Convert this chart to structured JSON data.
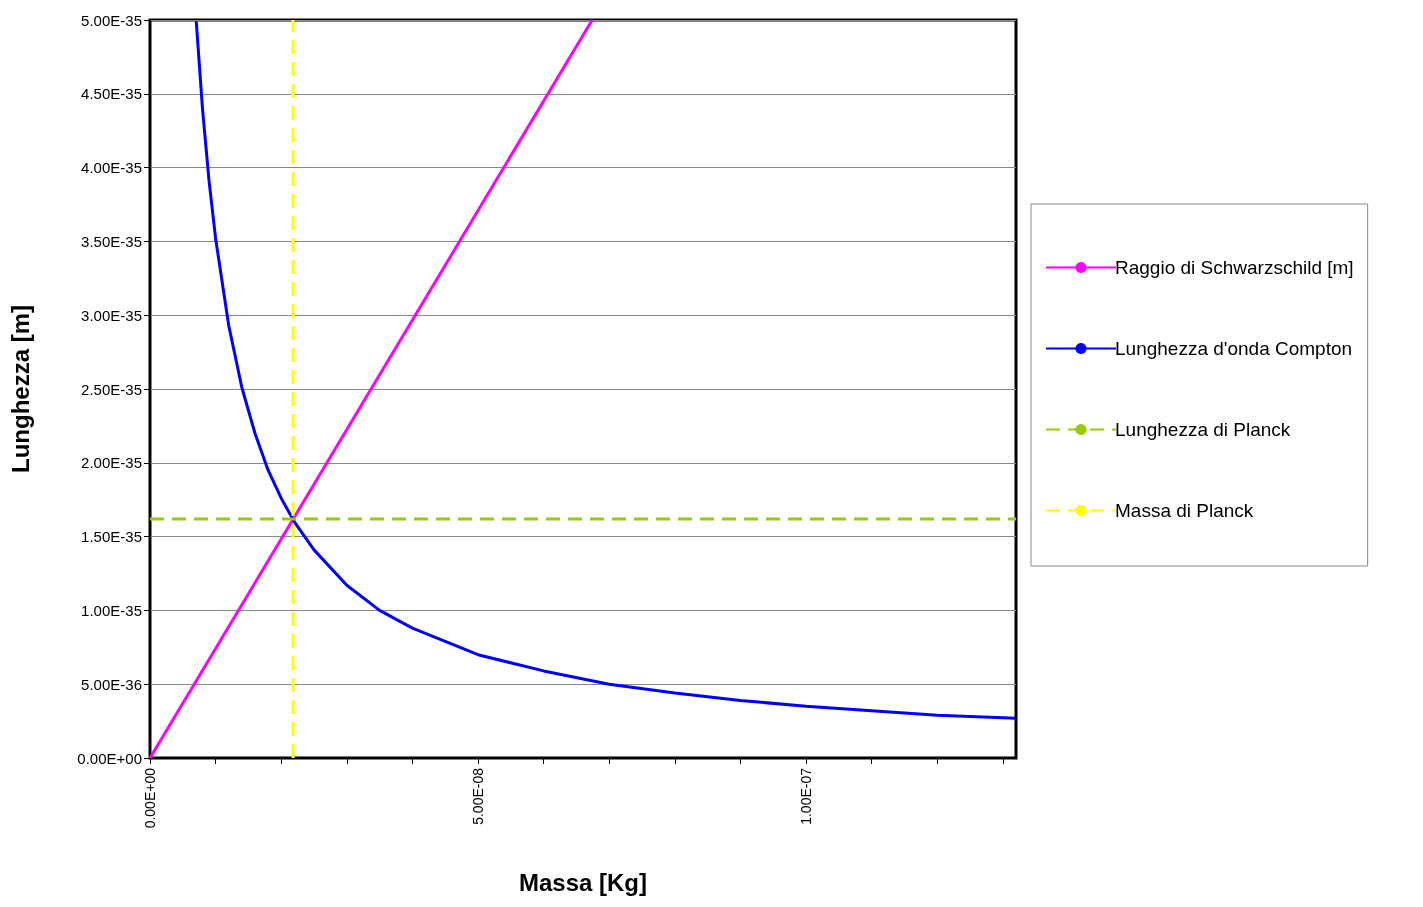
{
  "chart_data": {
    "type": "line",
    "xlabel": "Massa [Kg]",
    "ylabel": "Lunghezza [m]",
    "xlim": [
      0,
      1.32e-07
    ],
    "xticks": [
      {
        "value": 0,
        "label": "0.00E+00"
      },
      {
        "value": 1e-08,
        "label": null
      },
      {
        "value": 2e-08,
        "label": null
      },
      {
        "value": 3e-08,
        "label": null
      },
      {
        "value": 4e-08,
        "label": null
      },
      {
        "value": 5e-08,
        "label": "5.00E-08"
      },
      {
        "value": 6e-08,
        "label": null
      },
      {
        "value": 7e-08,
        "label": null
      },
      {
        "value": 8e-08,
        "label": null
      },
      {
        "value": 9e-08,
        "label": null
      },
      {
        "value": 1e-07,
        "label": "1.00E-07"
      },
      {
        "value": 1.1e-07,
        "label": null
      },
      {
        "value": 1.2e-07,
        "label": null
      },
      {
        "value": 1.3e-07,
        "label": null
      }
    ],
    "ylim": [
      0,
      5e-35
    ],
    "yticks": [
      {
        "value": 0,
        "label": "0.00E+00"
      },
      {
        "value": 5e-36,
        "label": "5.00E-36"
      },
      {
        "value": 1e-35,
        "label": "1.00E-35"
      },
      {
        "value": 1.5e-35,
        "label": "1.50E-35"
      },
      {
        "value": 2e-35,
        "label": "2.00E-35"
      },
      {
        "value": 2.5e-35,
        "label": "2.50E-35"
      },
      {
        "value": 3e-35,
        "label": "3.00E-35"
      },
      {
        "value": 3.5e-35,
        "label": "3.50E-35"
      },
      {
        "value": 4e-35,
        "label": "4.00E-35"
      },
      {
        "value": 4.5e-35,
        "label": "4.50E-35"
      },
      {
        "value": 5e-35,
        "label": "5.00E-35"
      }
    ],
    "grid": "y",
    "legend": "right",
    "marker": "none",
    "series": [
      {
        "name": "Raggio di Schwarzschild [m]",
        "color": "#ff00ff",
        "line_style": "solid",
        "x": [
          0,
          6.74e-08
        ],
        "values": [
          0,
          5e-35
        ]
      },
      {
        "name": "Lunghezza d'onda Compton",
        "color": "#0000ff",
        "line_style": "solid",
        "x": [
          7.05e-09,
          8e-09,
          9e-09,
          1e-08,
          1.2e-08,
          1.4e-08,
          1.6e-08,
          1.8e-08,
          2e-08,
          2.2e-08,
          2.5e-08,
          3e-08,
          3.5e-08,
          4e-08,
          5e-08,
          6e-08,
          7e-08,
          8e-08,
          9e-08,
          1e-07,
          1.1e-07,
          1.2e-07,
          1.32e-07
        ],
        "values": [
          4.99e-35,
          4.4e-35,
          3.91e-35,
          3.52e-35,
          2.93e-35,
          2.51e-35,
          2.2e-35,
          1.95e-35,
          1.76e-35,
          1.6e-35,
          1.41e-35,
          1.17e-35,
          1e-35,
          8.8e-36,
          7e-36,
          5.9e-36,
          5e-36,
          4.4e-36,
          3.9e-36,
          3.5e-36,
          3.2e-36,
          2.9e-36,
          2.7e-36
        ]
      },
      {
        "name": "Lunghezza di Planck",
        "color": "#99cc00",
        "line_style": "dashed",
        "x": [
          0,
          1.32e-07
        ],
        "values": [
          1.62e-35,
          1.62e-35
        ]
      },
      {
        "name": "Massa di Planck",
        "color": "#ffff00",
        "line_style": "dashed",
        "x": [
          2.18e-08,
          2.18e-08
        ],
        "values": [
          0,
          5e-35
        ]
      }
    ]
  }
}
